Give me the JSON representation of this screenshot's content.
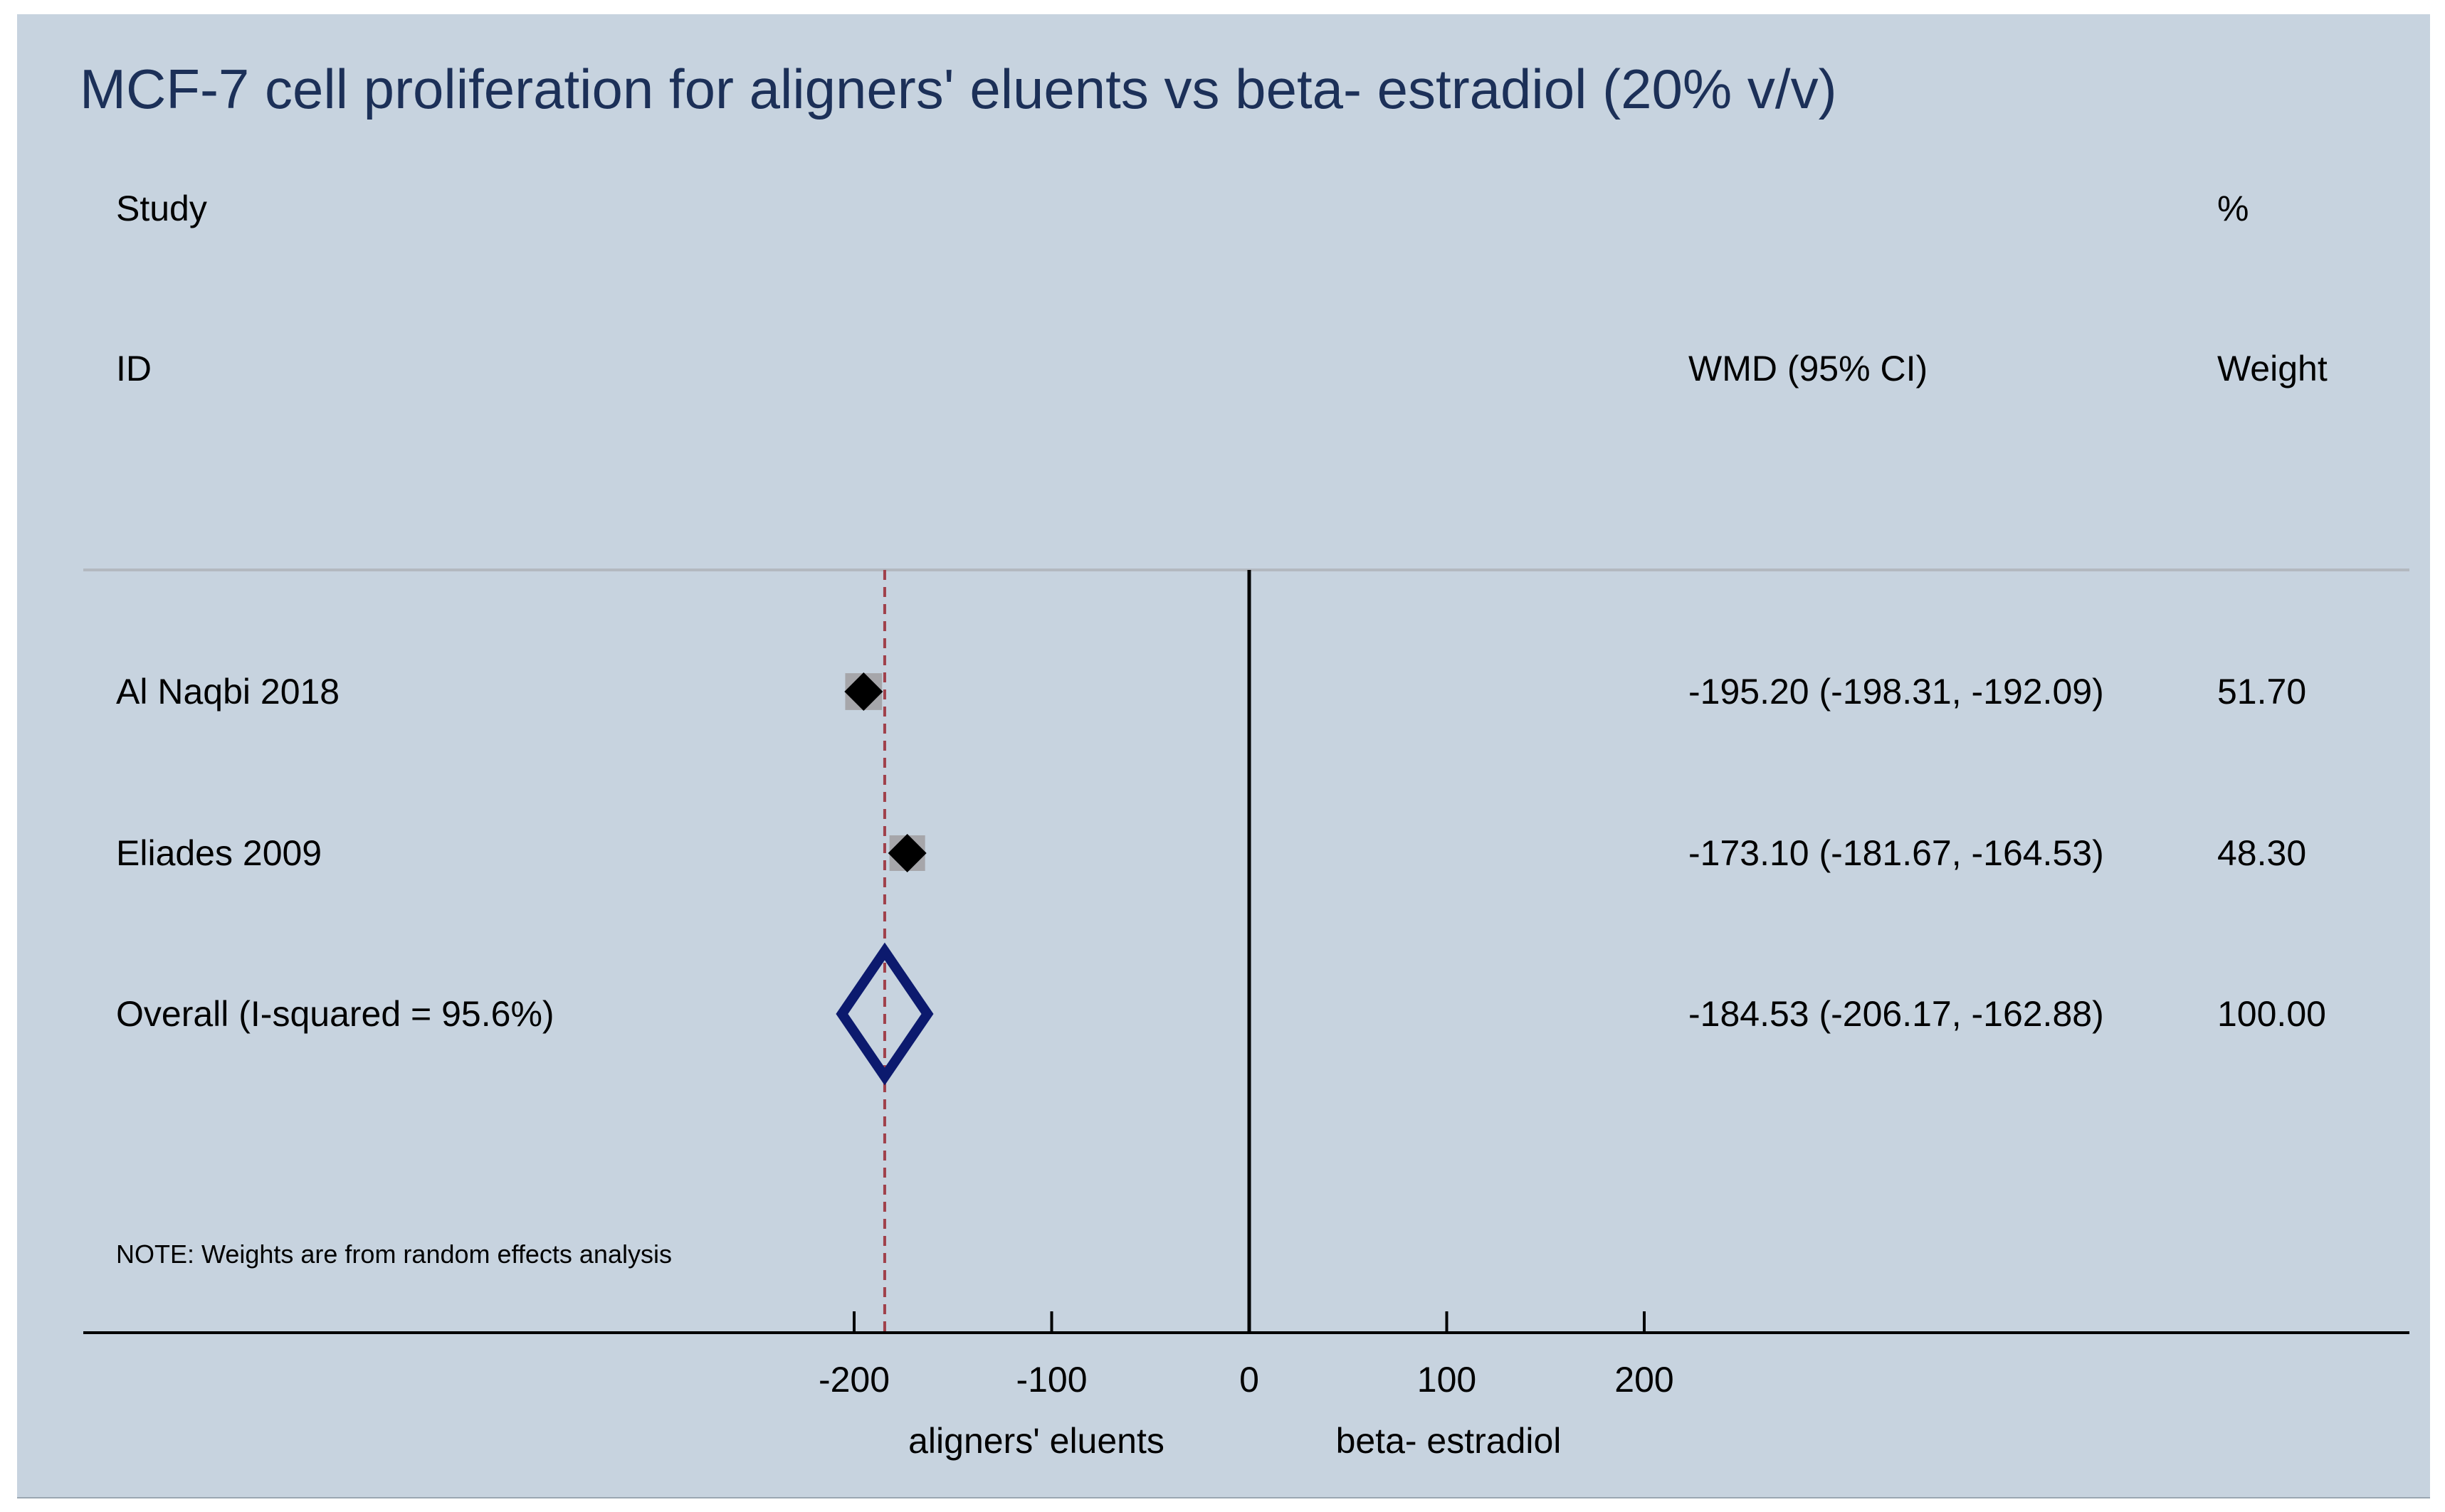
{
  "chart_data": {
    "type": "forest",
    "title": "MCF-7 cell proliferation for aligners' eluents vs beta- estradiol (20% v/v)",
    "headers": {
      "study_line1": "Study",
      "study_line2": "ID",
      "effect": "WMD (95% CI)",
      "weight_line1": "%",
      "weight_line2": "Weight"
    },
    "studies": [
      {
        "label": "Al Naqbi 2018",
        "wmd": -195.2,
        "ci": [
          -198.31,
          -192.09
        ],
        "ci_text": "-195.20 (-198.31, -192.09)",
        "weight": 51.7,
        "weight_text": "51.70"
      },
      {
        "label": "Eliades 2009",
        "wmd": -173.1,
        "ci": [
          -181.67,
          -164.53
        ],
        "ci_text": "-173.10 (-181.67, -164.53)",
        "weight": 48.3,
        "weight_text": "48.30"
      }
    ],
    "overall": {
      "label": "Overall  (I-squared = 95.6%)",
      "wmd": -184.53,
      "ci": [
        -206.17,
        -162.88
      ],
      "ci_text": "-184.53 (-206.17, -162.88)",
      "weight_text": "100.00"
    },
    "note": "NOTE: Weights are from random effects analysis",
    "x_ticks": [
      -200,
      -100,
      0,
      100,
      200
    ],
    "x_tick_labels": [
      "-200",
      "-100",
      "0",
      "100",
      "200"
    ],
    "null_line": 0,
    "favours_left": "aligners' eluents",
    "favours_right": "beta- estradiol",
    "colors": {
      "background": "#c7d3df",
      "title": "#1c3058",
      "text": "#000000",
      "overall_diamond": "#0c1a6e",
      "overall_line": "#a0404a",
      "weight_box": "#a6a6aa"
    }
  }
}
